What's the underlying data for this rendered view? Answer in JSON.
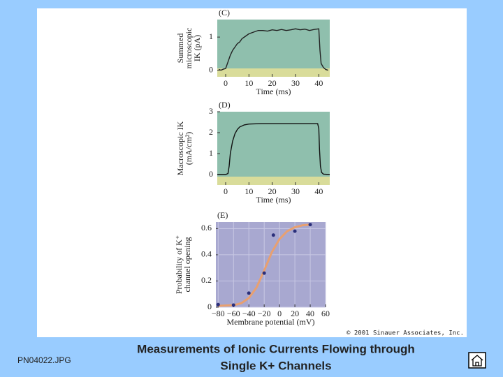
{
  "slide": {
    "filename": "PN04022.JPG",
    "title_lines": [
      "Measurements of Ionic Currents Flowing through",
      "Single K+ Channels"
    ],
    "copyright": "© 2001 Sinauer Associates, Inc."
  },
  "chart_data": [
    {
      "type": "line",
      "panel_label": "(C)",
      "ylabel": [
        "Summed",
        "microscopic",
        "IK (pA)"
      ],
      "xlabel": "Time (ms)",
      "background": "#8fbfad",
      "color": "#222222",
      "x": [
        -3,
        -2,
        -1,
        0,
        1,
        2,
        3,
        4,
        5,
        6,
        7,
        8,
        9,
        10,
        12,
        14,
        16,
        18,
        20,
        22,
        24,
        26,
        28,
        30,
        32,
        34,
        36,
        38,
        40,
        40.5,
        41,
        42,
        43,
        44
      ],
      "values": [
        0.02,
        0.0,
        0.03,
        0.05,
        0.25,
        0.45,
        0.6,
        0.7,
        0.8,
        0.85,
        0.95,
        1.0,
        1.05,
        1.1,
        1.15,
        1.2,
        1.2,
        1.18,
        1.22,
        1.2,
        1.23,
        1.2,
        1.22,
        1.25,
        1.22,
        1.24,
        1.2,
        1.23,
        1.25,
        0.6,
        0.2,
        0.08,
        0.02,
        0.0
      ],
      "xlim": [
        -3.6,
        44.7
      ],
      "xticks": [
        0,
        10,
        20,
        30,
        40
      ],
      "ylim": [
        -0.2,
        1.53
      ],
      "yticks": [
        0,
        1
      ]
    },
    {
      "type": "line",
      "panel_label": "(D)",
      "ylabel": [
        "Macroscopic IK",
        "(mA/cm²)"
      ],
      "xlabel": "Time (ms)",
      "background": "#8fbfad",
      "color": "#111111",
      "x": [
        -3.6,
        0,
        1,
        1.5,
        2,
        3,
        4,
        5,
        6,
        8,
        10,
        15,
        20,
        30,
        39.5,
        40,
        40.3,
        40.7,
        41.2,
        42,
        44.7
      ],
      "values": [
        0.0,
        0.0,
        0.05,
        0.4,
        1.0,
        1.6,
        1.95,
        2.15,
        2.27,
        2.37,
        2.41,
        2.43,
        2.43,
        2.43,
        2.43,
        2.2,
        1.2,
        0.4,
        0.1,
        0.02,
        0.0
      ],
      "xlim": [
        -3.6,
        44.7
      ],
      "xticks": [
        0,
        10,
        20,
        30,
        40
      ],
      "ylim": [
        -0.5,
        3
      ],
      "yticks": [
        0,
        1,
        2,
        3
      ]
    },
    {
      "type": "scatter",
      "panel_label": "(E)",
      "ylabel": [
        "Probability of K⁺",
        "channel opening"
      ],
      "xlabel": "Membrane potential (mV)",
      "background": "#a8a8d0",
      "color": "#2a2f7a",
      "grid": true,
      "x": [
        -80,
        -60,
        -40,
        -20,
        -8,
        20,
        40
      ],
      "values": [
        0.02,
        0.016,
        0.107,
        0.26,
        0.55,
        0.58,
        0.63
      ],
      "curve": {
        "color": "#e8a070",
        "x": [
          -80,
          -60,
          -50,
          -40,
          -30,
          -20,
          -10,
          0,
          10,
          20,
          30,
          40
        ],
        "values": [
          0.01,
          0.015,
          0.03,
          0.07,
          0.15,
          0.28,
          0.42,
          0.52,
          0.58,
          0.61,
          0.625,
          0.63
        ]
      },
      "xlim": [
        -83,
        60
      ],
      "xticks": [
        {
          "value": -80,
          "label": "−80"
        },
        {
          "value": -60,
          "label": "−60"
        },
        {
          "value": -40,
          "label": "−40"
        },
        {
          "value": -20,
          "label": "−20"
        },
        0,
        20,
        40,
        60
      ],
      "ylim": [
        0,
        0.65
      ],
      "yticks": [
        0,
        0.2,
        0.4,
        0.6
      ]
    }
  ]
}
